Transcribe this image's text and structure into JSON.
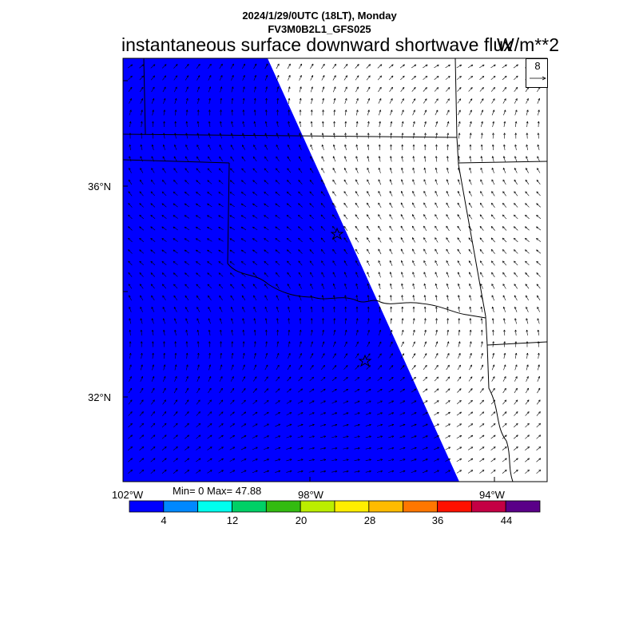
{
  "header": {
    "date_line": "2024/1/29/0UTC (18LT), Monday",
    "model_line": "FV3M0B2L1_GFS025",
    "title": "instantaneous surface downward shortwave flux",
    "units": "W/m**2"
  },
  "reference_vector": {
    "label": "8"
  },
  "stats": {
    "text": "Min= 0 Max= 47.88"
  },
  "axes": {
    "lat_labels": [
      {
        "text": "36°N",
        "value": 36
      },
      {
        "text": "32°N",
        "value": 32
      }
    ],
    "lon_labels": [
      {
        "text": "102°W",
        "value": -102
      },
      {
        "text": "98°W",
        "value": -98
      },
      {
        "text": "94°W",
        "value": -94
      }
    ]
  },
  "colorbar": {
    "colors": [
      "#0000ff",
      "#0088ff",
      "#00ffee",
      "#00d066",
      "#33bb11",
      "#bbee00",
      "#ffee00",
      "#ffbb00",
      "#ff7700",
      "#ff1100",
      "#c40044",
      "#5a0088"
    ],
    "tick_labels": [
      "4",
      "12",
      "20",
      "28",
      "36",
      "44"
    ]
  },
  "field": {
    "variable": "instantaneous surface downward shortwave flux",
    "min": 0,
    "max": 47.88
  },
  "icons": [
    "star-marker-icon",
    "reference-arrow-icon"
  ]
}
